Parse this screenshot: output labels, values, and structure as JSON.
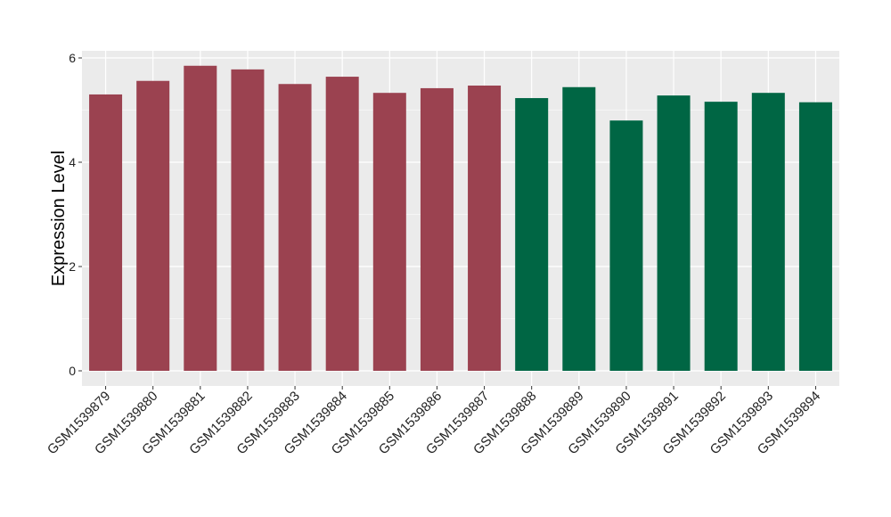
{
  "chart_data": {
    "type": "bar",
    "title": "",
    "xlabel": "",
    "ylabel": "Expression Level",
    "ylim": [
      -0.3,
      6.15
    ],
    "yticks": [
      0,
      2,
      4,
      6
    ],
    "grid": true,
    "legend": "none",
    "categories": [
      "GSM1539879",
      "GSM1539880",
      "GSM1539881",
      "GSM1539882",
      "GSM1539883",
      "GSM1539884",
      "GSM1539885",
      "GSM1539886",
      "GSM1539887",
      "GSM1539888",
      "GSM1539889",
      "GSM1539890",
      "GSM1539891",
      "GSM1539892",
      "GSM1539893",
      "GSM1539894"
    ],
    "values": [
      5.3,
      5.56,
      5.85,
      5.78,
      5.5,
      5.64,
      5.33,
      5.42,
      5.47,
      5.23,
      5.44,
      4.8,
      5.28,
      5.16,
      5.33,
      5.15
    ],
    "groups": [
      0,
      0,
      0,
      0,
      0,
      0,
      0,
      0,
      0,
      1,
      1,
      1,
      1,
      1,
      1,
      1
    ],
    "colors": [
      "#9b4250",
      "#006644"
    ],
    "panel_background": "#ebebeb",
    "grid_color": "#ffffff"
  }
}
